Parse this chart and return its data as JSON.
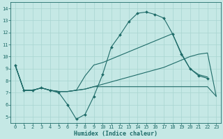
{
  "title": "",
  "xlabel": "Humidex (Indice chaleur)",
  "background_color": "#c5e8e5",
  "grid_color": "#a8d5d0",
  "line_color": "#1e6b68",
  "xlim": [
    -0.5,
    23.5
  ],
  "ylim": [
    4.5,
    14.5
  ],
  "yticks": [
    5,
    6,
    7,
    8,
    9,
    10,
    11,
    12,
    13,
    14
  ],
  "xticks": [
    0,
    1,
    2,
    3,
    4,
    5,
    6,
    7,
    8,
    9,
    10,
    11,
    12,
    13,
    14,
    15,
    16,
    17,
    18,
    19,
    20,
    21,
    22,
    23
  ],
  "lines": [
    {
      "x": [
        0,
        1,
        2,
        3,
        4,
        5,
        6,
        7,
        8,
        9,
        10,
        11,
        12,
        13,
        14,
        15,
        16,
        17,
        18,
        19,
        20,
        21,
        22
      ],
      "y": [
        9.3,
        7.2,
        7.2,
        7.4,
        7.2,
        7.0,
        6.0,
        4.8,
        5.2,
        6.7,
        8.5,
        10.8,
        11.8,
        12.9,
        13.6,
        13.7,
        13.5,
        13.2,
        11.9,
        10.2,
        9.0,
        8.4,
        8.2
      ],
      "marker": true
    },
    {
      "x": [
        0,
        1,
        2,
        3,
        4,
        5,
        6,
        7,
        8,
        9,
        10,
        11,
        12,
        13,
        14,
        15,
        16,
        17,
        18,
        19,
        20,
        21,
        22
      ],
      "y": [
        9.3,
        7.2,
        7.2,
        7.4,
        7.2,
        7.1,
        7.1,
        7.2,
        8.4,
        9.3,
        9.5,
        9.8,
        10.1,
        10.4,
        10.7,
        11.0,
        11.3,
        11.6,
        11.9,
        10.3,
        9.0,
        8.5,
        8.3
      ],
      "marker": false
    },
    {
      "x": [
        0,
        1,
        2,
        3,
        4,
        5,
        6,
        7,
        8,
        9,
        10,
        11,
        12,
        13,
        14,
        15,
        16,
        17,
        18,
        19,
        20,
        21,
        22,
        23
      ],
      "y": [
        9.3,
        7.2,
        7.2,
        7.4,
        7.2,
        7.1,
        7.1,
        7.2,
        7.3,
        7.5,
        7.7,
        7.9,
        8.1,
        8.3,
        8.5,
        8.7,
        8.9,
        9.1,
        9.4,
        9.7,
        10.0,
        10.2,
        10.3,
        6.7
      ],
      "marker": false
    },
    {
      "x": [
        0,
        1,
        2,
        3,
        4,
        5,
        6,
        7,
        8,
        9,
        10,
        11,
        12,
        13,
        14,
        15,
        16,
        17,
        18,
        19,
        20,
        21,
        22,
        23
      ],
      "y": [
        9.3,
        7.2,
        7.2,
        7.4,
        7.2,
        7.1,
        7.1,
        7.2,
        7.3,
        7.5,
        7.5,
        7.5,
        7.5,
        7.5,
        7.5,
        7.5,
        7.5,
        7.5,
        7.5,
        7.5,
        7.5,
        7.5,
        7.5,
        6.7
      ],
      "marker": false
    }
  ]
}
